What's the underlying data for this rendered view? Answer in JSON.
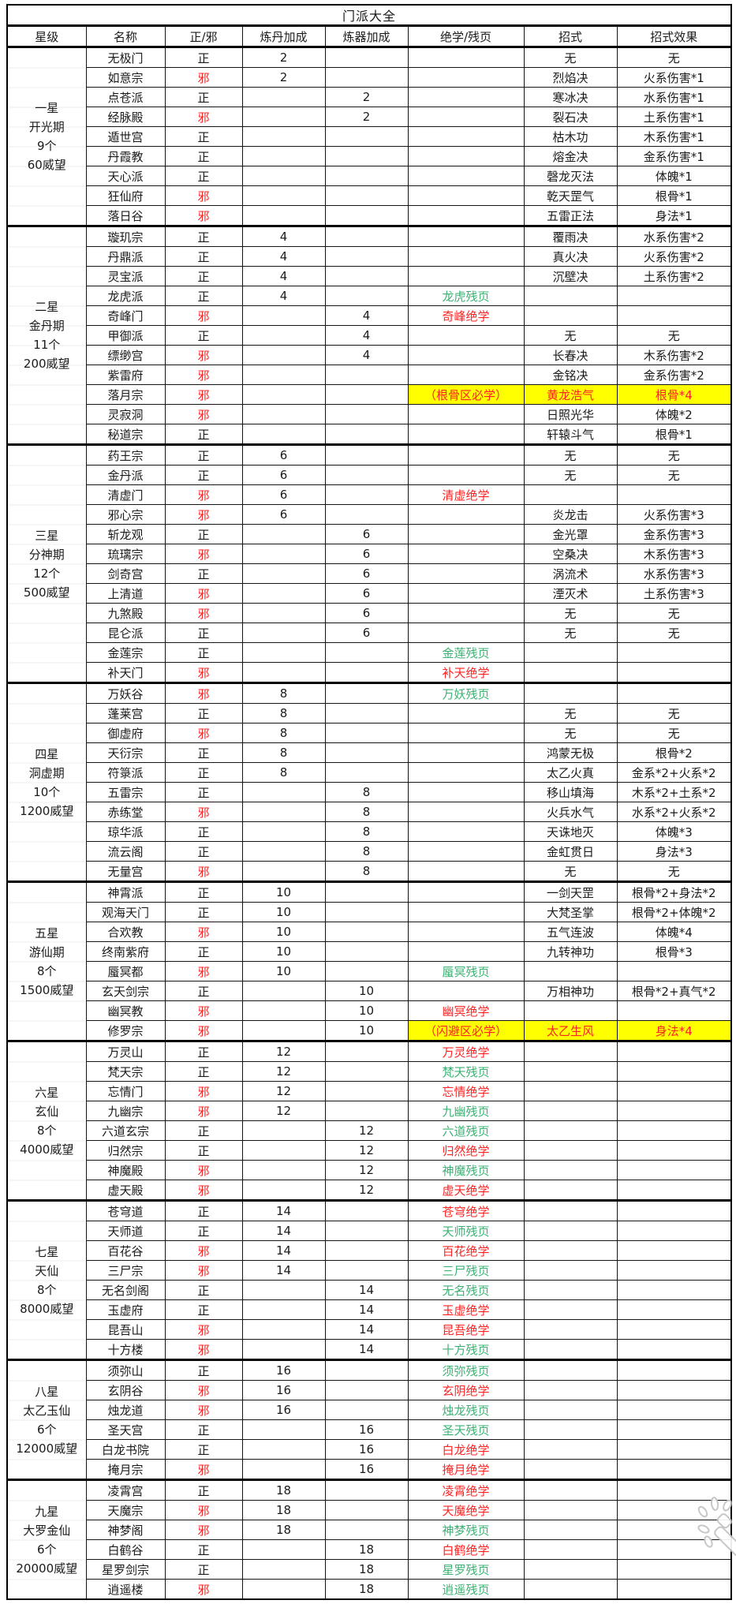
{
  "title": "门派大全",
  "columns": [
    "星级",
    "名称",
    "正/邪",
    "炼丹加成",
    "炼器加成",
    "绝学/残页",
    "招式",
    "招式效果"
  ],
  "colors": {
    "evil_red": "#fe2222",
    "page_green": "#3bb273",
    "highlight_yellow": "#ffff00",
    "grid_black": "#141414"
  },
  "watermark_icon": "magic-wand-icon",
  "groups": [
    {
      "star_label": [
        "一星",
        "开光期",
        "9个",
        "60威望"
      ],
      "rows": [
        {
          "name": "无极门",
          "align": "正",
          "dan": "2",
          "qi": "",
          "skill": "",
          "sc": "",
          "move": "无",
          "effect": "无",
          "hl": false
        },
        {
          "name": "如意宗",
          "align": "邪",
          "dan": "2",
          "qi": "",
          "skill": "",
          "sc": "",
          "move": "烈焰决",
          "effect": "火系伤害*1",
          "hl": false
        },
        {
          "name": "点苍派",
          "align": "正",
          "dan": "",
          "qi": "2",
          "skill": "",
          "sc": "",
          "move": "寒冰决",
          "effect": "水系伤害*1",
          "hl": false
        },
        {
          "name": "经脉殿",
          "align": "邪",
          "dan": "",
          "qi": "2",
          "skill": "",
          "sc": "",
          "move": "裂石决",
          "effect": "土系伤害*1",
          "hl": false
        },
        {
          "name": "遁世宫",
          "align": "正",
          "dan": "",
          "qi": "",
          "skill": "",
          "sc": "",
          "move": "枯木功",
          "effect": "木系伤害*1",
          "hl": false
        },
        {
          "name": "丹霞教",
          "align": "正",
          "dan": "",
          "qi": "",
          "skill": "",
          "sc": "",
          "move": "熔金决",
          "effect": "金系伤害*1",
          "hl": false
        },
        {
          "name": "天心派",
          "align": "正",
          "dan": "",
          "qi": "",
          "skill": "",
          "sc": "",
          "move": "磬龙灭法",
          "effect": "体魄*1",
          "hl": false
        },
        {
          "name": "狂仙府",
          "align": "邪",
          "dan": "",
          "qi": "",
          "skill": "",
          "sc": "",
          "move": "乾天罡气",
          "effect": "根骨*1",
          "hl": false
        },
        {
          "name": "落日谷",
          "align": "邪",
          "dan": "",
          "qi": "",
          "skill": "",
          "sc": "",
          "move": "五雷正法",
          "effect": "身法*1",
          "hl": false
        }
      ]
    },
    {
      "star_label": [
        "二星",
        "金丹期",
        "11个",
        "200威望"
      ],
      "rows": [
        {
          "name": "璇玑宗",
          "align": "正",
          "dan": "4",
          "qi": "",
          "skill": "",
          "sc": "",
          "move": "覆雨决",
          "effect": "水系伤害*2",
          "hl": false
        },
        {
          "name": "丹鼎派",
          "align": "正",
          "dan": "4",
          "qi": "",
          "skill": "",
          "sc": "",
          "move": "真火决",
          "effect": "火系伤害*2",
          "hl": false
        },
        {
          "name": "灵宝派",
          "align": "正",
          "dan": "4",
          "qi": "",
          "skill": "",
          "sc": "",
          "move": "沉壁决",
          "effect": "土系伤害*2",
          "hl": false
        },
        {
          "name": "龙虎派",
          "align": "正",
          "dan": "4",
          "qi": "",
          "skill": "龙虎残页",
          "sc": "g",
          "move": "",
          "effect": "",
          "hl": false
        },
        {
          "name": "奇峰门",
          "align": "邪",
          "dan": "",
          "qi": "4",
          "skill": "奇峰绝学",
          "sc": "r",
          "move": "",
          "effect": "",
          "hl": false
        },
        {
          "name": "甲御派",
          "align": "正",
          "dan": "",
          "qi": "4",
          "skill": "",
          "sc": "",
          "move": "无",
          "effect": "无",
          "hl": false
        },
        {
          "name": "缥缈宫",
          "align": "邪",
          "dan": "",
          "qi": "4",
          "skill": "",
          "sc": "",
          "move": "长春决",
          "effect": "木系伤害*2",
          "hl": false
        },
        {
          "name": "紫雷府",
          "align": "邪",
          "dan": "",
          "qi": "",
          "skill": "",
          "sc": "",
          "move": "金铭决",
          "effect": "金系伤害*2",
          "hl": false
        },
        {
          "name": "落月宗",
          "align": "邪",
          "dan": "",
          "qi": "",
          "skill": "（根骨区必学）",
          "sc": "y",
          "move": "黄龙浩气",
          "effect": "根骨*4",
          "hl": true
        },
        {
          "name": "灵寂洞",
          "align": "邪",
          "dan": "",
          "qi": "",
          "skill": "",
          "sc": "",
          "move": "日照光华",
          "effect": "体魄*2",
          "hl": false
        },
        {
          "name": "秘道宗",
          "align": "正",
          "dan": "",
          "qi": "",
          "skill": "",
          "sc": "",
          "move": "轩辕斗气",
          "effect": "根骨*1",
          "hl": false
        }
      ]
    },
    {
      "star_label": [
        "三星",
        "分神期",
        "12个",
        "500威望"
      ],
      "rows": [
        {
          "name": "药王宗",
          "align": "正",
          "dan": "6",
          "qi": "",
          "skill": "",
          "sc": "",
          "move": "无",
          "effect": "无",
          "hl": false
        },
        {
          "name": "金丹派",
          "align": "正",
          "dan": "6",
          "qi": "",
          "skill": "",
          "sc": "",
          "move": "无",
          "effect": "无",
          "hl": false
        },
        {
          "name": "清虚门",
          "align": "邪",
          "dan": "6",
          "qi": "",
          "skill": "清虚绝学",
          "sc": "r",
          "move": "",
          "effect": "",
          "hl": false
        },
        {
          "name": "邪心宗",
          "align": "邪",
          "dan": "6",
          "qi": "",
          "skill": "",
          "sc": "",
          "move": "炎龙击",
          "effect": "火系伤害*3",
          "hl": false
        },
        {
          "name": "斩龙观",
          "align": "正",
          "dan": "",
          "qi": "6",
          "skill": "",
          "sc": "",
          "move": "金光罩",
          "effect": "金系伤害*3",
          "hl": false
        },
        {
          "name": "琉璃宗",
          "align": "邪",
          "dan": "",
          "qi": "6",
          "skill": "",
          "sc": "",
          "move": "空桑决",
          "effect": "木系伤害*3",
          "hl": false
        },
        {
          "name": "剑奇宫",
          "align": "正",
          "dan": "",
          "qi": "6",
          "skill": "",
          "sc": "",
          "move": "涡流术",
          "effect": "水系伤害*3",
          "hl": false
        },
        {
          "name": "上清道",
          "align": "邪",
          "dan": "",
          "qi": "6",
          "skill": "",
          "sc": "",
          "move": "湮灭术",
          "effect": "土系伤害*3",
          "hl": false
        },
        {
          "name": "九煞殿",
          "align": "邪",
          "dan": "",
          "qi": "6",
          "skill": "",
          "sc": "",
          "move": "无",
          "effect": "无",
          "hl": false
        },
        {
          "name": "昆仑派",
          "align": "正",
          "dan": "",
          "qi": "6",
          "skill": "",
          "sc": "",
          "move": "无",
          "effect": "无",
          "hl": false
        },
        {
          "name": "金莲宗",
          "align": "正",
          "dan": "",
          "qi": "",
          "skill": "金莲残页",
          "sc": "g",
          "move": "",
          "effect": "",
          "hl": false
        },
        {
          "name": "补天门",
          "align": "邪",
          "dan": "",
          "qi": "",
          "skill": "补天绝学",
          "sc": "r",
          "move": "",
          "effect": "",
          "hl": false
        }
      ]
    },
    {
      "star_label": [
        "四星",
        "洞虚期",
        "10个",
        "1200威望"
      ],
      "rows": [
        {
          "name": "万妖谷",
          "align": "邪",
          "dan": "8",
          "qi": "",
          "skill": "万妖残页",
          "sc": "g",
          "move": "",
          "effect": "",
          "hl": false
        },
        {
          "name": "蓬莱宫",
          "align": "正",
          "dan": "8",
          "qi": "",
          "skill": "",
          "sc": "",
          "move": "无",
          "effect": "无",
          "hl": false
        },
        {
          "name": "御虚府",
          "align": "邪",
          "dan": "8",
          "qi": "",
          "skill": "",
          "sc": "",
          "move": "无",
          "effect": "无",
          "hl": false
        },
        {
          "name": "天衍宗",
          "align": "正",
          "dan": "8",
          "qi": "",
          "skill": "",
          "sc": "",
          "move": "鸿蒙无极",
          "effect": "根骨*2",
          "hl": false
        },
        {
          "name": "符箓派",
          "align": "正",
          "dan": "8",
          "qi": "",
          "skill": "",
          "sc": "",
          "move": "太乙火真",
          "effect": "金系*2+火系*2",
          "hl": false
        },
        {
          "name": "五雷宗",
          "align": "正",
          "dan": "",
          "qi": "8",
          "skill": "",
          "sc": "",
          "move": "移山填海",
          "effect": "木系*2+土系*2",
          "hl": false
        },
        {
          "name": "赤练堂",
          "align": "邪",
          "dan": "",
          "qi": "8",
          "skill": "",
          "sc": "",
          "move": "火兵水气",
          "effect": "水系*2+火系*2",
          "hl": false
        },
        {
          "name": "琼华派",
          "align": "正",
          "dan": "",
          "qi": "8",
          "skill": "",
          "sc": "",
          "move": "天诛地灭",
          "effect": "体魄*3",
          "hl": false
        },
        {
          "name": "流云阁",
          "align": "正",
          "dan": "",
          "qi": "8",
          "skill": "",
          "sc": "",
          "move": "金虹贯日",
          "effect": "身法*3",
          "hl": false
        },
        {
          "name": "无量宫",
          "align": "邪",
          "dan": "",
          "qi": "8",
          "skill": "",
          "sc": "",
          "move": "无",
          "effect": "无",
          "hl": false
        }
      ]
    },
    {
      "star_label": [
        "五星",
        "游仙期",
        "8个",
        "1500威望"
      ],
      "rows": [
        {
          "name": "神霄派",
          "align": "正",
          "dan": "10",
          "qi": "",
          "skill": "",
          "sc": "",
          "move": "一剑天罡",
          "effect": "根骨*2+身法*2",
          "hl": false
        },
        {
          "name": "观海天门",
          "align": "正",
          "dan": "10",
          "qi": "",
          "skill": "",
          "sc": "",
          "move": "大梵圣掌",
          "effect": "根骨*2+体魄*2",
          "hl": false
        },
        {
          "name": "合欢教",
          "align": "邪",
          "dan": "10",
          "qi": "",
          "skill": "",
          "sc": "",
          "move": "五气连波",
          "effect": "体魄*4",
          "hl": false
        },
        {
          "name": "终南紫府",
          "align": "正",
          "dan": "10",
          "qi": "",
          "skill": "",
          "sc": "",
          "move": "九转神功",
          "effect": "根骨*3",
          "hl": false
        },
        {
          "name": "蜃冥都",
          "align": "邪",
          "dan": "10",
          "qi": "",
          "skill": "蜃冥残页",
          "sc": "g",
          "move": "",
          "effect": "",
          "hl": false
        },
        {
          "name": "玄天剑宗",
          "align": "正",
          "dan": "",
          "qi": "10",
          "skill": "",
          "sc": "",
          "move": "万相神功",
          "effect": "根骨*2+真气*2",
          "hl": false
        },
        {
          "name": "幽冥教",
          "align": "邪",
          "dan": "",
          "qi": "10",
          "skill": "幽冥绝学",
          "sc": "r",
          "move": "",
          "effect": "",
          "hl": false
        },
        {
          "name": "修罗宗",
          "align": "邪",
          "dan": "",
          "qi": "10",
          "skill": "（闪避区必学）",
          "sc": "y",
          "move": "太乙生风",
          "effect": "身法*4",
          "hl": true
        }
      ]
    },
    {
      "star_label": [
        "六星",
        "玄仙",
        "8个",
        "4000威望"
      ],
      "rows": [
        {
          "name": "万灵山",
          "align": "正",
          "dan": "12",
          "qi": "",
          "skill": "万灵绝学",
          "sc": "r",
          "move": "",
          "effect": "",
          "hl": false
        },
        {
          "name": "梵天宗",
          "align": "正",
          "dan": "12",
          "qi": "",
          "skill": "梵天残页",
          "sc": "g",
          "move": "",
          "effect": "",
          "hl": false
        },
        {
          "name": "忘情门",
          "align": "邪",
          "dan": "12",
          "qi": "",
          "skill": "忘情绝学",
          "sc": "r",
          "move": "",
          "effect": "",
          "hl": false
        },
        {
          "name": "九幽宗",
          "align": "邪",
          "dan": "12",
          "qi": "",
          "skill": "九幽残页",
          "sc": "g",
          "move": "",
          "effect": "",
          "hl": false
        },
        {
          "name": "六道玄宗",
          "align": "正",
          "dan": "",
          "qi": "12",
          "skill": "六道残页",
          "sc": "g",
          "move": "",
          "effect": "",
          "hl": false
        },
        {
          "name": "归然宗",
          "align": "正",
          "dan": "",
          "qi": "12",
          "skill": "归然绝学",
          "sc": "r",
          "move": "",
          "effect": "",
          "hl": false
        },
        {
          "name": "神魔殿",
          "align": "邪",
          "dan": "",
          "qi": "12",
          "skill": "神魔残页",
          "sc": "g",
          "move": "",
          "effect": "",
          "hl": false
        },
        {
          "name": "虚天殿",
          "align": "邪",
          "dan": "",
          "qi": "12",
          "skill": "虚天绝学",
          "sc": "r",
          "move": "",
          "effect": "",
          "hl": false
        }
      ]
    },
    {
      "star_label": [
        "七星",
        "天仙",
        "8个",
        "8000威望"
      ],
      "rows": [
        {
          "name": "苍穹道",
          "align": "正",
          "dan": "14",
          "qi": "",
          "skill": "苍穹绝学",
          "sc": "r",
          "move": "",
          "effect": "",
          "hl": false
        },
        {
          "name": "天师道",
          "align": "正",
          "dan": "14",
          "qi": "",
          "skill": "天师残页",
          "sc": "g",
          "move": "",
          "effect": "",
          "hl": false
        },
        {
          "name": "百花谷",
          "align": "邪",
          "dan": "14",
          "qi": "",
          "skill": "百花绝学",
          "sc": "r",
          "move": "",
          "effect": "",
          "hl": false
        },
        {
          "name": "三尸宗",
          "align": "邪",
          "dan": "14",
          "qi": "",
          "skill": "三尸残页",
          "sc": "g",
          "move": "",
          "effect": "",
          "hl": false
        },
        {
          "name": "无名剑阁",
          "align": "正",
          "dan": "",
          "qi": "14",
          "skill": "无名残页",
          "sc": "g",
          "move": "",
          "effect": "",
          "hl": false
        },
        {
          "name": "玉虚府",
          "align": "正",
          "dan": "",
          "qi": "14",
          "skill": "玉虚绝学",
          "sc": "r",
          "move": "",
          "effect": "",
          "hl": false
        },
        {
          "name": "昆吾山",
          "align": "邪",
          "dan": "",
          "qi": "14",
          "skill": "昆吾绝学",
          "sc": "r",
          "move": "",
          "effect": "",
          "hl": false
        },
        {
          "name": "十方楼",
          "align": "邪",
          "dan": "",
          "qi": "14",
          "skill": "十方残页",
          "sc": "g",
          "move": "",
          "effect": "",
          "hl": false
        }
      ]
    },
    {
      "star_label": [
        "八星",
        "太乙玉仙",
        "6个",
        "12000威望"
      ],
      "rows": [
        {
          "name": "须弥山",
          "align": "正",
          "dan": "16",
          "qi": "",
          "skill": "须弥残页",
          "sc": "g",
          "move": "",
          "effect": "",
          "hl": false
        },
        {
          "name": "玄阴谷",
          "align": "邪",
          "dan": "16",
          "qi": "",
          "skill": "玄阴绝学",
          "sc": "r",
          "move": "",
          "effect": "",
          "hl": false
        },
        {
          "name": "烛龙道",
          "align": "邪",
          "dan": "16",
          "qi": "",
          "skill": "烛龙残页",
          "sc": "g",
          "move": "",
          "effect": "",
          "hl": false
        },
        {
          "name": "圣天宫",
          "align": "正",
          "dan": "",
          "qi": "16",
          "skill": "圣天残页",
          "sc": "g",
          "move": "",
          "effect": "",
          "hl": false
        },
        {
          "name": "白龙书院",
          "align": "正",
          "dan": "",
          "qi": "16",
          "skill": "白龙绝学",
          "sc": "r",
          "move": "",
          "effect": "",
          "hl": false
        },
        {
          "name": "掩月宗",
          "align": "邪",
          "dan": "",
          "qi": "16",
          "skill": "掩月绝学",
          "sc": "r",
          "move": "",
          "effect": "",
          "hl": false
        }
      ]
    },
    {
      "star_label": [
        "九星",
        "大罗金仙",
        "6个",
        "20000威望"
      ],
      "rows": [
        {
          "name": "凌霄宫",
          "align": "正",
          "dan": "18",
          "qi": "",
          "skill": "凌霄绝学",
          "sc": "r",
          "move": "",
          "effect": "",
          "hl": false
        },
        {
          "name": "天魔宗",
          "align": "邪",
          "dan": "18",
          "qi": "",
          "skill": "天魔绝学",
          "sc": "r",
          "move": "",
          "effect": "",
          "hl": false
        },
        {
          "name": "神梦阁",
          "align": "邪",
          "dan": "18",
          "qi": "",
          "skill": "神梦残页",
          "sc": "g",
          "move": "",
          "effect": "",
          "hl": false
        },
        {
          "name": "白鹤谷",
          "align": "正",
          "dan": "",
          "qi": "18",
          "skill": "白鹤绝学",
          "sc": "r",
          "move": "",
          "effect": "",
          "hl": false
        },
        {
          "name": "星罗剑宗",
          "align": "正",
          "dan": "",
          "qi": "18",
          "skill": "星罗残页",
          "sc": "g",
          "move": "",
          "effect": "",
          "hl": false
        },
        {
          "name": "逍遥楼",
          "align": "邪",
          "dan": "",
          "qi": "18",
          "skill": "逍遥残页",
          "sc": "g",
          "move": "",
          "effect": "",
          "hl": false
        }
      ]
    }
  ]
}
